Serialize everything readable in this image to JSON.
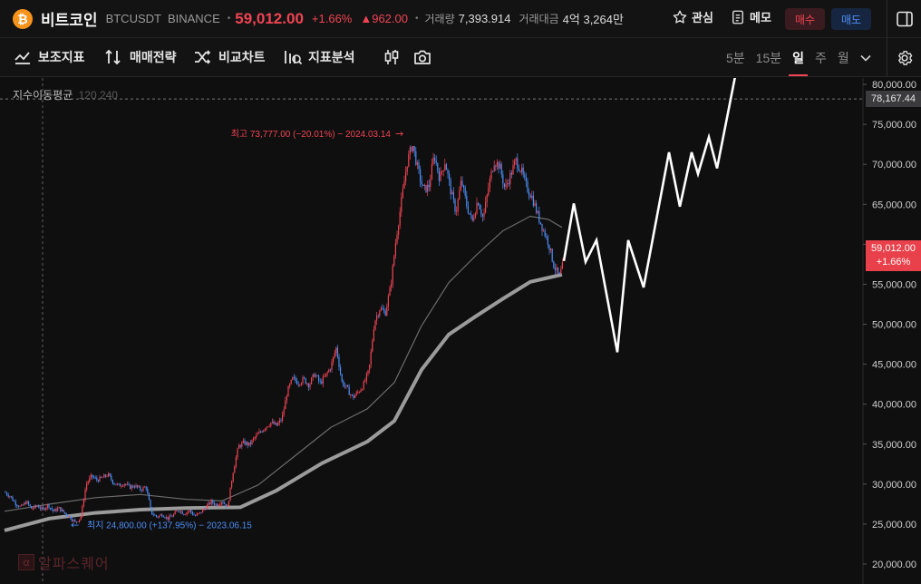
{
  "header": {
    "coin_symbol_glyph": "₿",
    "coin_name": "비트코인",
    "pair": "BTCUSDT",
    "exchange": "BINANCE",
    "separator": "•",
    "price": "59,012.00",
    "change_pct": "+1.66%",
    "change_abs": "▲962.00",
    "volume_label": "거래량",
    "volume_value": "7,393.914",
    "amount_label": "거래대금",
    "amount_value": "4억 3,264만",
    "favorite_label": "관심",
    "memo_label": "메모",
    "buy_label": "매수",
    "sell_label": "매도"
  },
  "toolbar": {
    "items": [
      {
        "id": "indicators",
        "label": "보조지표",
        "icon": "indicator-icon"
      },
      {
        "id": "strategy",
        "label": "매매전략",
        "icon": "strategy-icon"
      },
      {
        "id": "compare",
        "label": "비교차트",
        "icon": "compare-icon"
      },
      {
        "id": "analysis",
        "label": "지표분석",
        "icon": "analysis-icon"
      }
    ],
    "intervals": [
      {
        "label": "5분",
        "active": false
      },
      {
        "label": "15분",
        "active": false
      },
      {
        "label": "일",
        "active": true
      },
      {
        "label": "주",
        "active": false
      },
      {
        "label": "월",
        "active": false
      }
    ]
  },
  "chart_data": {
    "type": "candlestick",
    "ma_legend": {
      "label": "지수이동평균",
      "values": "120 240"
    },
    "y_axis": {
      "ticks": [
        20000,
        25000,
        30000,
        35000,
        40000,
        45000,
        50000,
        55000,
        60000,
        65000,
        70000,
        75000,
        80000
      ],
      "tick_labels": [
        "20,000.00",
        "25,000.00",
        "30,000.00",
        "35,000.00",
        "40,000.00",
        "45,000.00",
        "50,000.00",
        "55,000.00",
        "60,000.00",
        "65,000.00",
        "70,000.00",
        "75,000.00",
        "80,000.00"
      ],
      "ylim": [
        19000,
        81000
      ]
    },
    "current_price": {
      "price": "59,012.00",
      "change": "+1.66%",
      "value": 59012
    },
    "crosshair": {
      "value": 78167.44,
      "label": "78,167.44"
    },
    "high_annotation": {
      "text": "최고 73,777.00 (−20.01%) − 2024.03.14",
      "arrow": "→",
      "value": 73777
    },
    "low_annotation": {
      "text": "최지 24,800.00 (+137.95%) − 2023.06.15",
      "arrow": "←",
      "value": 24800
    },
    "price_path": [
      [
        0,
        29000
      ],
      [
        6,
        28500
      ],
      [
        12,
        27600
      ],
      [
        18,
        27100
      ],
      [
        24,
        27800
      ],
      [
        30,
        26900
      ],
      [
        36,
        27300
      ],
      [
        42,
        26800
      ],
      [
        48,
        27400
      ],
      [
        54,
        26600
      ],
      [
        60,
        27000
      ],
      [
        66,
        26400
      ],
      [
        72,
        25900
      ],
      [
        78,
        25200
      ],
      [
        84,
        25800
      ],
      [
        90,
        30000
      ],
      [
        96,
        31000
      ],
      [
        102,
        30500
      ],
      [
        108,
        30800
      ],
      [
        114,
        31200
      ],
      [
        120,
        30200
      ],
      [
        126,
        29800
      ],
      [
        132,
        30100
      ],
      [
        138,
        29600
      ],
      [
        144,
        29800
      ],
      [
        150,
        29300
      ],
      [
        156,
        29700
      ],
      [
        162,
        26400
      ],
      [
        168,
        25900
      ],
      [
        174,
        26200
      ],
      [
        180,
        25700
      ],
      [
        186,
        26100
      ],
      [
        192,
        26800
      ],
      [
        198,
        26300
      ],
      [
        204,
        26700
      ],
      [
        210,
        26000
      ],
      [
        216,
        26400
      ],
      [
        222,
        27100
      ],
      [
        228,
        27800
      ],
      [
        234,
        27400
      ],
      [
        240,
        27900
      ],
      [
        246,
        27100
      ],
      [
        252,
        31500
      ],
      [
        258,
        34700
      ],
      [
        264,
        35200
      ],
      [
        270,
        34900
      ],
      [
        276,
        35800
      ],
      [
        282,
        36500
      ],
      [
        288,
        37200
      ],
      [
        294,
        37700
      ],
      [
        300,
        37300
      ],
      [
        306,
        38200
      ],
      [
        312,
        41600
      ],
      [
        318,
        43200
      ],
      [
        324,
        42700
      ],
      [
        330,
        43100
      ],
      [
        336,
        42400
      ],
      [
        342,
        43800
      ],
      [
        348,
        42600
      ],
      [
        354,
        43500
      ],
      [
        360,
        44700
      ],
      [
        366,
        47100
      ],
      [
        372,
        42800
      ],
      [
        378,
        41900
      ],
      [
        384,
        40800
      ],
      [
        390,
        41500
      ],
      [
        396,
        42400
      ],
      [
        402,
        44200
      ],
      [
        408,
        50300
      ],
      [
        414,
        52000
      ],
      [
        420,
        51400
      ],
      [
        426,
        54800
      ],
      [
        432,
        60800
      ],
      [
        438,
        65500
      ],
      [
        444,
        70200
      ],
      [
        450,
        72600
      ],
      [
        456,
        69300
      ],
      [
        462,
        66800
      ],
      [
        468,
        67200
      ],
      [
        474,
        71200
      ],
      [
        480,
        68200
      ],
      [
        486,
        70400
      ],
      [
        492,
        66800
      ],
      [
        498,
        64000
      ],
      [
        504,
        68000
      ],
      [
        510,
        64800
      ],
      [
        516,
        62800
      ],
      [
        522,
        65600
      ],
      [
        528,
        63200
      ],
      [
        534,
        67200
      ],
      [
        540,
        70400
      ],
      [
        546,
        69800
      ],
      [
        552,
        66900
      ],
      [
        558,
        68600
      ],
      [
        564,
        70500
      ],
      [
        570,
        69200
      ],
      [
        576,
        67100
      ],
      [
        582,
        65900
      ],
      [
        588,
        63700
      ],
      [
        594,
        61900
      ],
      [
        600,
        60200
      ],
      [
        606,
        57300
      ],
      [
        612,
        55900
      ],
      [
        617,
        57900
      ]
    ],
    "ema120_path": [
      [
        0,
        26600
      ],
      [
        50,
        27500
      ],
      [
        100,
        28300
      ],
      [
        150,
        28700
      ],
      [
        200,
        28100
      ],
      [
        240,
        27900
      ],
      [
        280,
        29900
      ],
      [
        320,
        33500
      ],
      [
        360,
        37100
      ],
      [
        400,
        39400
      ],
      [
        430,
        42700
      ],
      [
        460,
        49800
      ],
      [
        490,
        55200
      ],
      [
        520,
        58600
      ],
      [
        550,
        61700
      ],
      [
        580,
        63500
      ],
      [
        600,
        63100
      ],
      [
        615,
        62100
      ]
    ],
    "ema240_path": [
      [
        0,
        24200
      ],
      [
        50,
        25700
      ],
      [
        100,
        26400
      ],
      [
        150,
        26800
      ],
      [
        200,
        27000
      ],
      [
        260,
        27100
      ],
      [
        300,
        29200
      ],
      [
        350,
        32600
      ],
      [
        400,
        35300
      ],
      [
        430,
        37900
      ],
      [
        460,
        44300
      ],
      [
        490,
        48700
      ],
      [
        520,
        51000
      ],
      [
        550,
        53200
      ],
      [
        580,
        55300
      ],
      [
        615,
        56200
      ]
    ],
    "drawn_projection": [
      [
        617,
        57900
      ],
      [
        628,
        65100
      ],
      [
        641,
        57800
      ],
      [
        653,
        60500
      ],
      [
        676,
        46500
      ],
      [
        688,
        60500
      ],
      [
        705,
        54600
      ],
      [
        733,
        71500
      ],
      [
        745,
        64700
      ],
      [
        758,
        71500
      ],
      [
        765,
        68800
      ],
      [
        777,
        73400
      ],
      [
        786,
        69500
      ],
      [
        806,
        81000
      ]
    ],
    "colors": {
      "up": "#f04452",
      "down": "#4d8ef5",
      "projection": "#ffffff",
      "ema120": "#6c6c6c",
      "ema240": "#9b9b9b"
    }
  },
  "watermark": {
    "logo_glyph": "α",
    "text": "알파스퀘어"
  }
}
